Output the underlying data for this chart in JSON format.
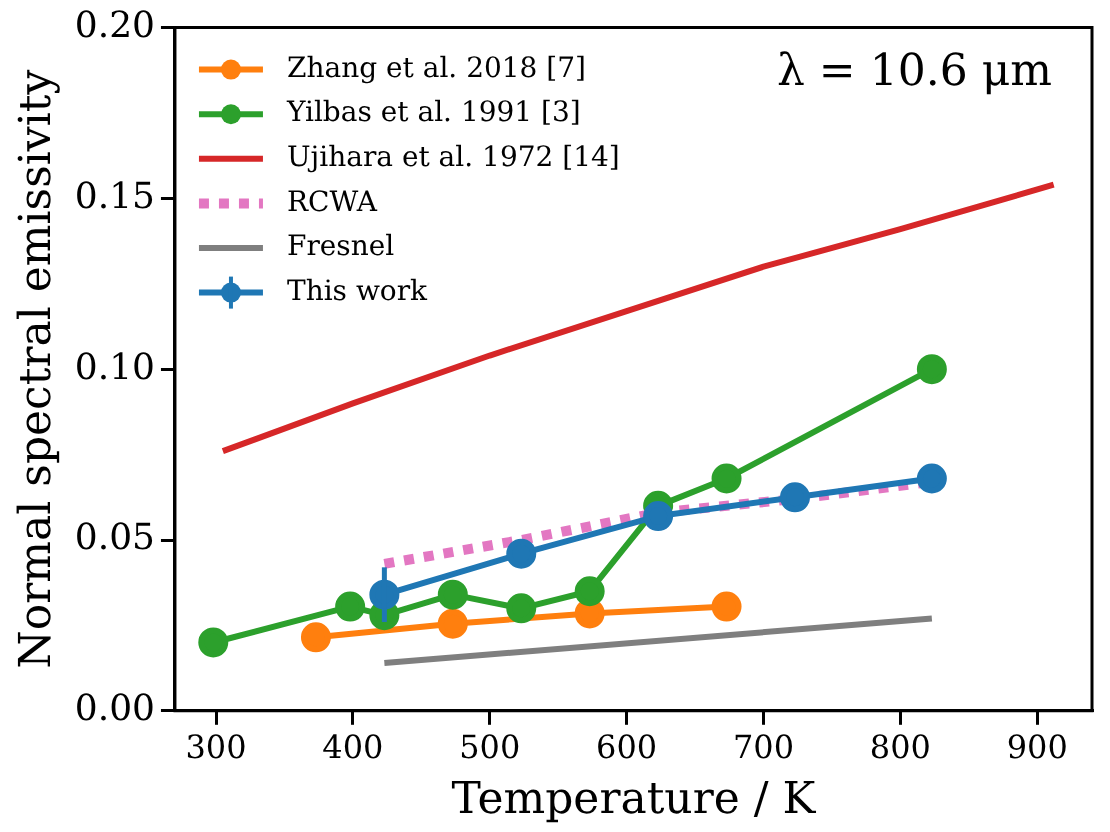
{
  "chart_data": {
    "type": "line",
    "xlabel": "Temperature / K",
    "ylabel": "Normal spectral emissivity",
    "annotations": [
      "λ = 10.6 μm"
    ],
    "xlim": [
      270,
      940
    ],
    "xticks": [
      300,
      400,
      500,
      600,
      700,
      800,
      900
    ],
    "ylim": [
      0,
      0.2
    ],
    "yticks": [
      {
        "value": 0,
        "label": "0.00"
      },
      0.05,
      {
        "value": 0.1,
        "label": "0.10"
      },
      0.15,
      {
        "value": 0.2,
        "label": "0.20"
      }
    ],
    "legend": "top left",
    "grid": false,
    "series": [
      {
        "name": "Zhang et al. 2018 [7]",
        "color": "#ff7f0e",
        "marker": "circle",
        "line_style": "solid",
        "x": [
          373,
          473,
          573,
          673
        ],
        "values": [
          0.0215,
          0.0255,
          0.0285,
          0.0305
        ]
      },
      {
        "name": "Yilbas et al. 1991 [3]",
        "color": "#2ca02c",
        "marker": "circle",
        "line_style": "solid",
        "x": [
          298,
          398,
          423,
          473,
          523,
          573,
          623,
          673,
          823
        ],
        "values": [
          0.02,
          0.0305,
          0.028,
          0.034,
          0.03,
          0.035,
          0.06,
          0.068,
          0.1
        ]
      },
      {
        "name": "Ujihara et al. 1972 [14]",
        "color": "#d62728",
        "marker": "none",
        "line_style": "solid",
        "x": [
          305,
          400,
          500,
          600,
          700,
          800,
          912
        ],
        "values": [
          0.076,
          0.09,
          0.104,
          0.117,
          0.13,
          0.141,
          0.154
        ]
      },
      {
        "name": "RCWA",
        "color": "#e377c2",
        "marker": "none",
        "line_style": "dotted",
        "x": [
          423,
          523,
          623,
          723,
          823
        ],
        "values": [
          0.043,
          0.05,
          0.058,
          0.062,
          0.067
        ]
      },
      {
        "name": "Fresnel",
        "color": "#7f7f7f",
        "marker": "none",
        "line_style": "solid",
        "x": [
          423,
          823
        ],
        "values": [
          0.014,
          0.027
        ]
      },
      {
        "name": "This work",
        "color": "#1f77b4",
        "marker": "circle",
        "line_style": "solid",
        "x": [
          423,
          523,
          623,
          723,
          823
        ],
        "values": [
          0.034,
          0.046,
          0.057,
          0.0625,
          0.068
        ],
        "errors": [
          0.008,
          null,
          null,
          null,
          null
        ]
      }
    ]
  }
}
